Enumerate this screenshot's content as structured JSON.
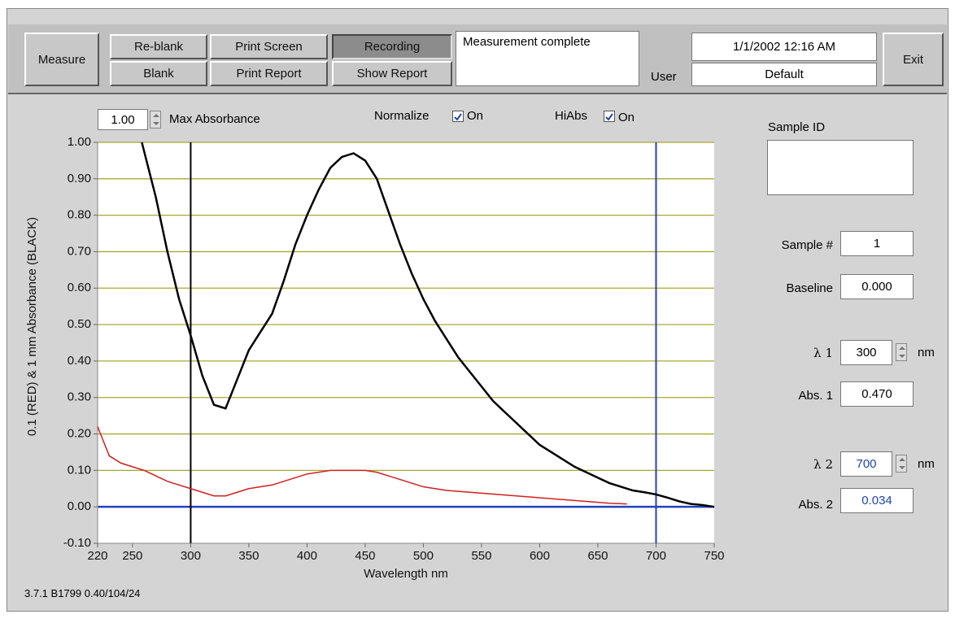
{
  "toolbar": {
    "measure": "Measure",
    "reblank": "Re-blank",
    "blank": "Blank",
    "print_screen": "Print Screen",
    "print_report": "Print Report",
    "recording": "Recording",
    "show_report": "Show Report",
    "status": "Measurement complete",
    "user_label": "User",
    "datetime": "1/1/2002 12:16 AM",
    "user": "Default",
    "exit": "Exit"
  },
  "controls": {
    "max_abs_value": "1.00",
    "max_abs_label": "Max  Absorbance",
    "normalize_label": "Normalize",
    "normalize_state": "On",
    "hiabs_label": "HiAbs",
    "hiabs_state": "On"
  },
  "chart_data": {
    "type": "line",
    "xlabel": "Wavelength nm",
    "ylabel": "0.1  (RED) & 1 mm Absorbance (BLACK)",
    "xlim": [
      220,
      750
    ],
    "ylim": [
      -0.1,
      1.0
    ],
    "xticks": [
      220,
      250,
      300,
      350,
      400,
      450,
      500,
      550,
      600,
      650,
      700,
      750
    ],
    "yticks": [
      {
        "value": -0.1,
        "label": "-0.10"
      },
      {
        "value": 0,
        "label": "0.00"
      },
      {
        "value": 0.1,
        "label": "0.10"
      },
      {
        "value": 0.2,
        "label": "0.20"
      },
      {
        "value": 0.3,
        "label": "0.30"
      },
      {
        "value": 0.4,
        "label": "0.40"
      },
      {
        "value": 0.5,
        "label": "0.50"
      },
      {
        "value": 0.6,
        "label": "0.60"
      },
      {
        "value": 0.7,
        "label": "0.70"
      },
      {
        "value": 0.8,
        "label": "0.80"
      },
      {
        "value": 0.9,
        "label": "0.90"
      },
      {
        "value": 1.0,
        "label": "1.00"
      }
    ],
    "grid": true,
    "grid_color": "#a8a830",
    "series": [
      {
        "color": "#000000",
        "x": [
          258,
          270,
          280,
          290,
          300,
          310,
          320,
          330,
          340,
          350,
          360,
          370,
          380,
          390,
          400,
          410,
          420,
          430,
          440,
          450,
          460,
          470,
          480,
          490,
          500,
          510,
          520,
          530,
          540,
          550,
          560,
          570,
          580,
          590,
          600,
          610,
          620,
          630,
          640,
          650,
          660,
          670,
          680,
          690,
          700,
          710,
          720,
          730,
          740,
          750
        ],
        "values": [
          1.0,
          0.85,
          0.7,
          0.57,
          0.47,
          0.36,
          0.28,
          0.27,
          0.35,
          0.43,
          0.48,
          0.53,
          0.62,
          0.72,
          0.8,
          0.87,
          0.93,
          0.96,
          0.97,
          0.95,
          0.9,
          0.81,
          0.72,
          0.64,
          0.57,
          0.51,
          0.46,
          0.41,
          0.37,
          0.33,
          0.29,
          0.26,
          0.23,
          0.2,
          0.17,
          0.15,
          0.13,
          0.11,
          0.095,
          0.08,
          0.065,
          0.055,
          0.045,
          0.04,
          0.034,
          0.025,
          0.015,
          0.008,
          0.005,
          0.0
        ]
      },
      {
        "color": "#d02020",
        "x": [
          220,
          225,
          230,
          240,
          250,
          260,
          270,
          280,
          290,
          300,
          310,
          320,
          330,
          340,
          350,
          360,
          370,
          380,
          390,
          400,
          410,
          420,
          430,
          440,
          450,
          460,
          470,
          480,
          490,
          500,
          520,
          540,
          560,
          580,
          600,
          620,
          640,
          660,
          675
        ],
        "values": [
          0.22,
          0.18,
          0.14,
          0.12,
          0.11,
          0.1,
          0.085,
          0.07,
          0.06,
          0.05,
          0.04,
          0.03,
          0.03,
          0.04,
          0.05,
          0.055,
          0.06,
          0.07,
          0.08,
          0.09,
          0.095,
          0.1,
          0.1,
          0.1,
          0.1,
          0.095,
          0.085,
          0.075,
          0.065,
          0.055,
          0.045,
          0.04,
          0.035,
          0.03,
          0.025,
          0.02,
          0.015,
          0.01,
          0.008
        ]
      }
    ]
  },
  "side_panel": {
    "sample_id_label": "Sample ID",
    "sample_num_label": "Sample #",
    "sample_num": 1,
    "baseline_label": "Baseline",
    "baseline": "0.000",
    "lambda1_label": "λ 1",
    "lambda1": 300,
    "lambda1_unit": "nm",
    "abs1_label": "Abs. 1",
    "abs1": "0.470",
    "lambda2_label": "λ 2",
    "lambda2": 700,
    "lambda2_unit": "nm",
    "abs2_label": "Abs. 2",
    "abs2": "0.034"
  },
  "footer": "3.7.1 B1799 0.40/104/24"
}
